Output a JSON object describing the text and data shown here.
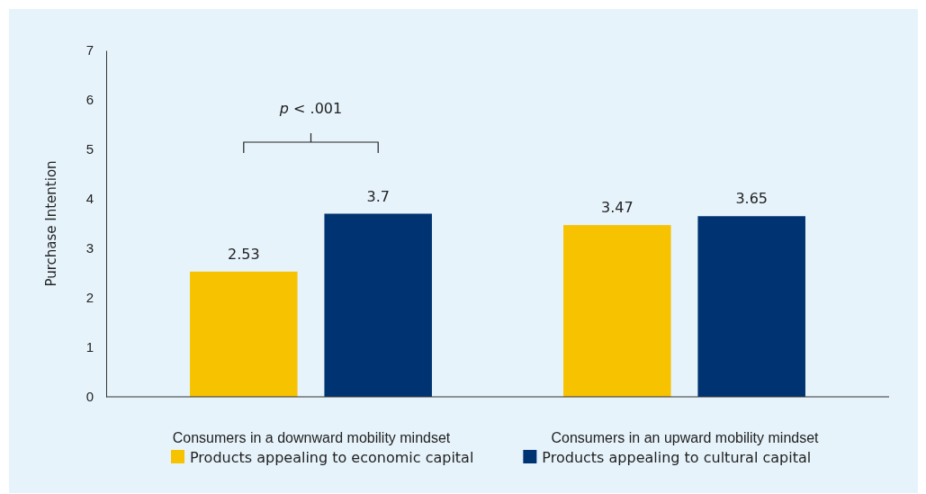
{
  "chart_data": {
    "type": "bar",
    "categories": [
      "Consumers in a downward mobility mindset",
      "Consumers in an upward mobility mindset"
    ],
    "series": [
      {
        "name": "Products appealing to economic capital",
        "color": "#f7c200",
        "values": [
          2.53,
          3.47
        ]
      },
      {
        "name": "Products appealing to cultural capital",
        "color": "#003372",
        "values": [
          3.7,
          3.65
        ]
      }
    ],
    "ylabel": "Purchase Intention",
    "ylim": [
      0,
      7
    ],
    "yticks": [
      0,
      1,
      2,
      3,
      4,
      5,
      6,
      7
    ],
    "data_labels": true,
    "legend": "bottom",
    "grid": false,
    "annotations": [
      "p < .001"
    ]
  }
}
